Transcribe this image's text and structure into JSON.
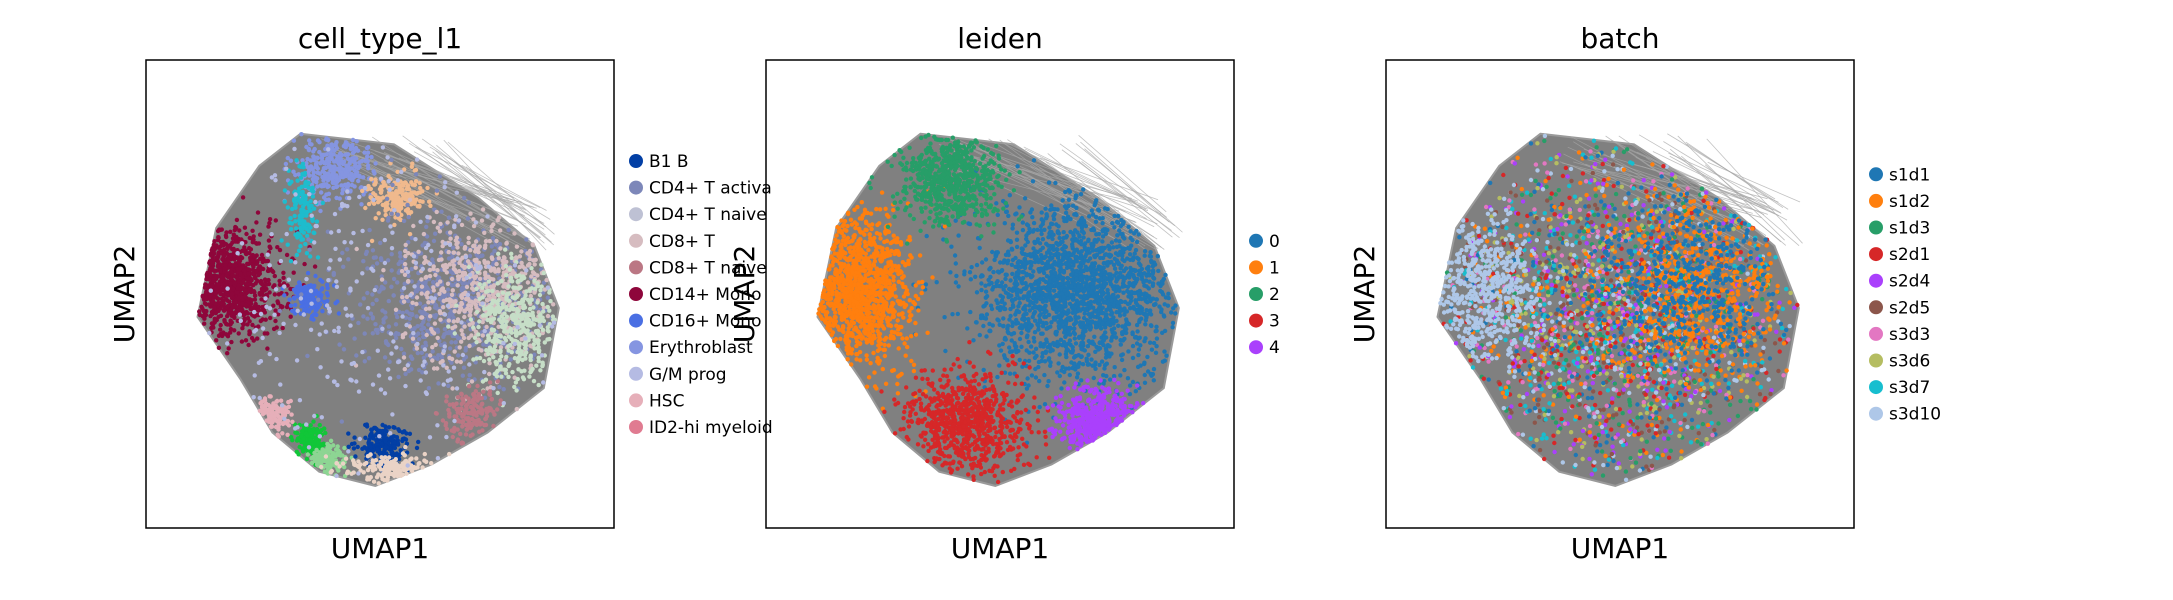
{
  "chart_data": [
    {
      "type": "scatter",
      "title": "cell_type_l1",
      "xlabel": "UMAP1",
      "ylabel": "UMAP2",
      "legend_position": "right",
      "background_color": "#808080",
      "legend": [
        {
          "label": "B1 B",
          "color": "#023fa5"
        },
        {
          "label": "CD4+ T activa",
          "color": "#7d87b9"
        },
        {
          "label": "CD4+ T naive",
          "color": "#bec1d4"
        },
        {
          "label": "CD8+ T",
          "color": "#d6bcc0"
        },
        {
          "label": "CD8+ T naive",
          "color": "#bb7784"
        },
        {
          "label": "CD14+ Mono",
          "color": "#8e063b"
        },
        {
          "label": "CD16+ Mono",
          "color": "#4a6fe3"
        },
        {
          "label": "Erythroblast",
          "color": "#8595e1"
        },
        {
          "label": "G/M prog",
          "color": "#b5bbe3"
        },
        {
          "label": "HSC",
          "color": "#e6afb9"
        },
        {
          "label": "ID2-hi myeloid",
          "color": "#e07b91"
        }
      ],
      "clusters": [
        {
          "cx": -0.8,
          "cy": 0.15,
          "rx": 0.28,
          "ry": 0.3,
          "color": "#8e063b",
          "n": 900
        },
        {
          "cx": -0.35,
          "cy": 0.05,
          "rx": 0.1,
          "ry": 0.1,
          "color": "#4a6fe3",
          "n": 160
        },
        {
          "cx": -0.22,
          "cy": 0.78,
          "rx": 0.22,
          "ry": 0.18,
          "color": "#8595e1",
          "n": 320
        },
        {
          "cx": -0.4,
          "cy": 0.55,
          "rx": 0.08,
          "ry": 0.25,
          "color": "#1ebccd",
          "n": 140
        },
        {
          "cx": 0.12,
          "cy": 0.62,
          "rx": 0.15,
          "ry": 0.14,
          "color": "#f0b98d",
          "n": 200
        },
        {
          "cx": 0.4,
          "cy": 0.05,
          "rx": 0.55,
          "ry": 0.45,
          "color": "#7d87b9",
          "n": 700
        },
        {
          "cx": 0.55,
          "cy": 0.1,
          "rx": 0.4,
          "ry": 0.4,
          "color": "#d6bcc0",
          "n": 550
        },
        {
          "cx": 0.75,
          "cy": -0.1,
          "rx": 0.25,
          "ry": 0.35,
          "color": "#c6dec7",
          "n": 400
        },
        {
          "cx": -0.35,
          "cy": -0.75,
          "rx": 0.08,
          "ry": 0.1,
          "color": "#11c638",
          "n": 160
        },
        {
          "cx": -0.25,
          "cy": -0.85,
          "rx": 0.1,
          "ry": 0.08,
          "color": "#8dd593",
          "n": 140
        },
        {
          "cx": 0.05,
          "cy": -0.78,
          "rx": 0.14,
          "ry": 0.12,
          "color": "#023fa5",
          "n": 220
        },
        {
          "cx": -0.55,
          "cy": -0.6,
          "rx": 0.1,
          "ry": 0.1,
          "color": "#e6afb9",
          "n": 120
        },
        {
          "cx": 0.1,
          "cy": -0.9,
          "rx": 0.25,
          "ry": 0.08,
          "color": "#ead3c6",
          "n": 160
        },
        {
          "cx": 0.5,
          "cy": -0.6,
          "rx": 0.15,
          "ry": 0.15,
          "color": "#bb7784",
          "n": 150
        },
        {
          "cx": 0.0,
          "cy": 0.0,
          "rx": 1.0,
          "ry": 1.0,
          "color": "#b5bbe3",
          "n": 250
        }
      ]
    },
    {
      "type": "scatter",
      "title": "leiden",
      "xlabel": "UMAP1",
      "ylabel": "UMAP2",
      "legend_position": "right",
      "background_color": "#808080",
      "legend": [
        {
          "label": "0",
          "color": "#1f77b4"
        },
        {
          "label": "1",
          "color": "#ff7f0e"
        },
        {
          "label": "2",
          "color": "#279e68"
        },
        {
          "label": "3",
          "color": "#d62728"
        },
        {
          "label": "4",
          "color": "#aa40fc"
        }
      ],
      "clusters": [
        {
          "cx": 0.45,
          "cy": 0.1,
          "rx": 0.55,
          "ry": 0.5,
          "color": "#1f77b4",
          "n": 1900
        },
        {
          "cx": -0.75,
          "cy": 0.1,
          "rx": 0.3,
          "ry": 0.42,
          "color": "#ff7f0e",
          "n": 1100
        },
        {
          "cx": -0.25,
          "cy": 0.72,
          "rx": 0.25,
          "ry": 0.25,
          "color": "#279e68",
          "n": 700
        },
        {
          "cx": -0.15,
          "cy": -0.65,
          "rx": 0.3,
          "ry": 0.28,
          "color": "#d62728",
          "n": 800
        },
        {
          "cx": 0.55,
          "cy": -0.65,
          "rx": 0.2,
          "ry": 0.18,
          "color": "#aa40fc",
          "n": 450
        }
      ]
    },
    {
      "type": "scatter",
      "title": "batch",
      "xlabel": "UMAP1",
      "ylabel": "UMAP2",
      "legend_position": "right",
      "background_color": "#808080",
      "legend": [
        {
          "label": "s1d1",
          "color": "#1f77b4"
        },
        {
          "label": "s1d2",
          "color": "#ff7f0e"
        },
        {
          "label": "s1d3",
          "color": "#279e68"
        },
        {
          "label": "s2d1",
          "color": "#d62728"
        },
        {
          "label": "s2d4",
          "color": "#aa40fc"
        },
        {
          "label": "s2d5",
          "color": "#8c564b"
        },
        {
          "label": "s3d3",
          "color": "#e377c2"
        },
        {
          "label": "s3d6",
          "color": "#b5bd61"
        },
        {
          "label": "s3d7",
          "color": "#17becf"
        },
        {
          "label": "s3d10",
          "color": "#aec7e8"
        }
      ],
      "clusters": [
        {
          "cx": 0.0,
          "cy": 0.0,
          "rx": 1.0,
          "ry": 1.0,
          "color": "mixed",
          "n": 2600
        },
        {
          "cx": 0.45,
          "cy": 0.1,
          "rx": 0.45,
          "ry": 0.45,
          "color": "#ff7f0e",
          "n": 500
        },
        {
          "cx": 0.4,
          "cy": 0.15,
          "rx": 0.45,
          "ry": 0.45,
          "color": "#1f77b4",
          "n": 450
        },
        {
          "cx": -0.7,
          "cy": 0.1,
          "rx": 0.3,
          "ry": 0.4,
          "color": "#aec7e8",
          "n": 500
        }
      ]
    }
  ]
}
